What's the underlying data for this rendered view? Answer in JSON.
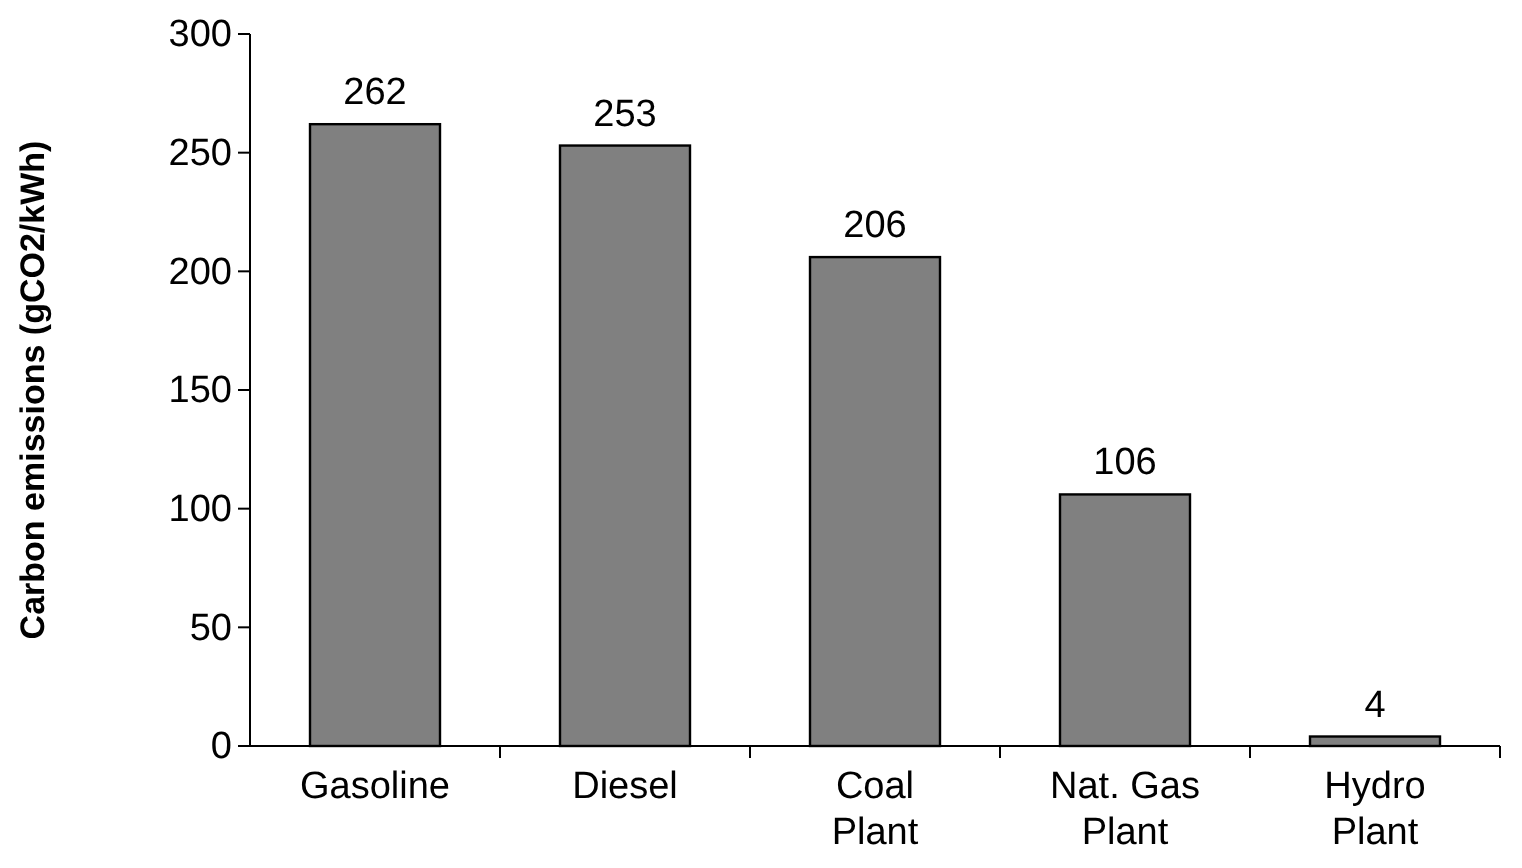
{
  "chart_data": {
    "type": "bar",
    "ylabel": "Carbon emissions (gCO2/kWh)",
    "categories": [
      "Gasoline",
      "Diesel",
      "Coal Plant",
      "Nat. Gas Plant",
      "Hydro Plant"
    ],
    "values": [
      262,
      253,
      206,
      106,
      4
    ],
    "color": "#808080",
    "ylim": [
      0,
      300
    ],
    "yticks": [
      0,
      50,
      100,
      150,
      200,
      250,
      300
    ],
    "data_labels": true,
    "grid": false
  }
}
